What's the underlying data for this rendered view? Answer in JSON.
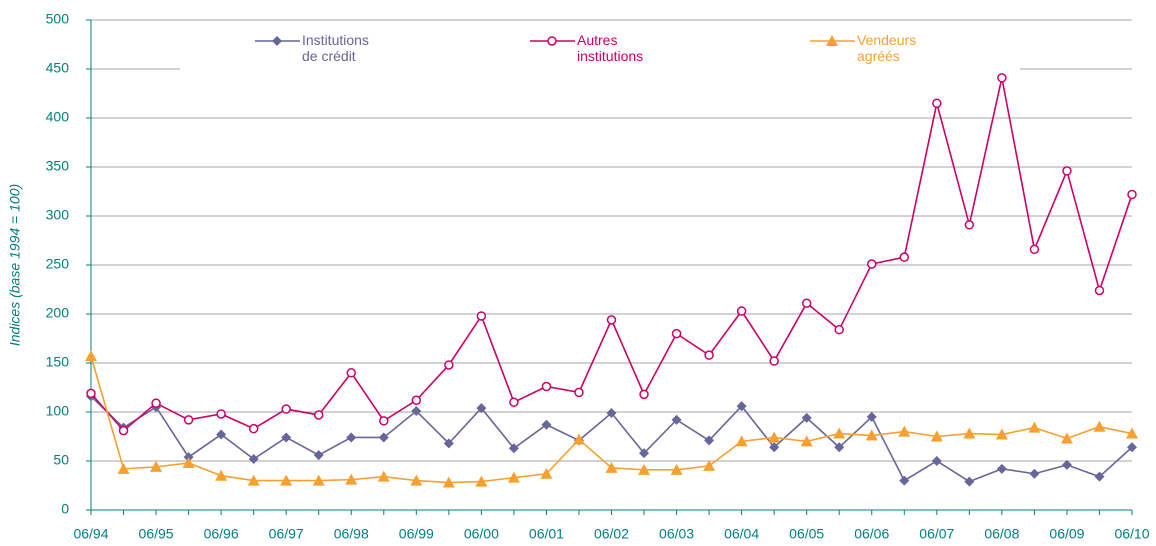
{
  "chart_data": {
    "type": "line",
    "y_label": "Indices (base 1994 = 100)",
    "categories": [
      "06/94",
      null,
      "06/95",
      null,
      "06/96",
      null,
      "06/97",
      null,
      "06/98",
      null,
      "06/99",
      null,
      "06/00",
      null,
      "06/01",
      null,
      "06/02",
      null,
      "06/03",
      null,
      "06/04",
      null,
      "06/05",
      null,
      "06/06",
      null,
      "06/07",
      null,
      "06/08",
      null,
      "06/09",
      null,
      "06/10"
    ],
    "series": [
      {
        "name": "Institutions de crédit",
        "color": "#66669a",
        "marker": "diamond",
        "values": [
          116,
          84,
          105,
          54,
          77,
          52,
          74,
          56,
          74,
          74,
          101,
          68,
          104,
          63,
          87,
          71,
          99,
          58,
          92,
          71,
          106,
          64,
          94,
          64,
          95,
          30,
          50,
          29,
          42,
          37,
          46,
          34,
          64
        ]
      },
      {
        "name": "Autres institutions",
        "color": "#cc0066",
        "marker": "circle",
        "values": [
          119,
          81,
          109,
          92,
          98,
          83,
          103,
          97,
          140,
          91,
          112,
          148,
          198,
          110,
          126,
          120,
          194,
          118,
          180,
          158,
          203,
          152,
          211,
          184,
          251,
          258,
          415,
          291,
          441,
          266,
          346,
          224,
          322
        ]
      },
      {
        "name": "Vendeurs agréés",
        "color": "#f7a030",
        "marker": "triangle",
        "values": [
          157,
          42,
          44,
          48,
          35,
          30,
          30,
          30,
          31,
          34,
          30,
          28,
          29,
          33,
          37,
          72,
          43,
          41,
          41,
          45,
          70,
          74,
          70,
          78,
          76,
          80,
          75,
          78,
          77,
          84,
          73,
          85,
          78
        ]
      }
    ],
    "ylim": [
      0,
      500
    ],
    "yticks": [
      0,
      50,
      100,
      150,
      200,
      250,
      300,
      350,
      400,
      450,
      500
    ],
    "grid": true
  }
}
